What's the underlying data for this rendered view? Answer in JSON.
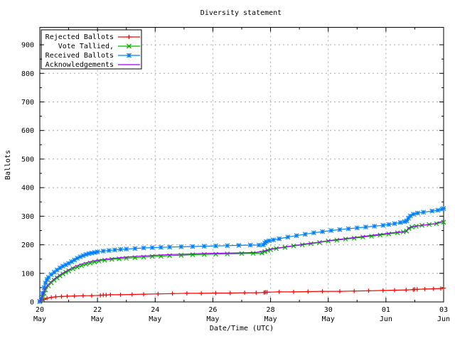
{
  "colors": {
    "background": "#ffffff",
    "border": "#000000",
    "grid": "#a8a8a8",
    "red": "#ff0000",
    "green": "#00b000",
    "blue": "#0080ff",
    "purple": "#a000f0"
  },
  "chart_data": {
    "type": "line",
    "title": "Diversity statement",
    "xlabel": "Date/Time (UTC)",
    "ylabel": "Ballots",
    "grid": true,
    "legend_position": "top-left",
    "x_axis": {
      "unit": "days from first tick (May 20)",
      "range_days": [
        0,
        14
      ],
      "tick_days": [
        0,
        2,
        4,
        6,
        8,
        10,
        12,
        14
      ],
      "tick_labels": [
        [
          "20",
          "May"
        ],
        [
          "22",
          "May"
        ],
        [
          "24",
          "May"
        ],
        [
          "26",
          "May"
        ],
        [
          "28",
          "May"
        ],
        [
          "30",
          "May"
        ],
        [
          "01",
          "Jun"
        ],
        [
          "03",
          "Jun"
        ]
      ],
      "minor_tick_days": [
        1,
        3,
        5,
        7,
        9,
        11,
        13
      ]
    },
    "y_axis": {
      "range": [
        0,
        961
      ],
      "ticks": [
        0,
        100,
        200,
        300,
        400,
        500,
        600,
        700,
        800,
        900
      ],
      "minor_step": 50
    },
    "series": [
      {
        "name": "Rejected Ballots",
        "color": "#ff0000",
        "marker": "plus",
        "points": [
          [
            0,
            1
          ],
          [
            0.08,
            5
          ],
          [
            0.15,
            9
          ],
          [
            0.25,
            13
          ],
          [
            0.4,
            16
          ],
          [
            0.55,
            18
          ],
          [
            0.75,
            19
          ],
          [
            0.95,
            20
          ],
          [
            1.2,
            21
          ],
          [
            1.5,
            22
          ],
          [
            1.8,
            22
          ],
          [
            2.1,
            23
          ],
          [
            2.2,
            24
          ],
          [
            2.3,
            24
          ],
          [
            2.45,
            25
          ],
          [
            2.8,
            25
          ],
          [
            3.2,
            26
          ],
          [
            3.6,
            27
          ],
          [
            4.1,
            28
          ],
          [
            4.6,
            29
          ],
          [
            5.1,
            30
          ],
          [
            5.6,
            30
          ],
          [
            6.1,
            31
          ],
          [
            6.6,
            31
          ],
          [
            7.1,
            32
          ],
          [
            7.5,
            32
          ],
          [
            7.78,
            33
          ],
          [
            7.82,
            34
          ],
          [
            7.88,
            34
          ],
          [
            8.3,
            35
          ],
          [
            8.8,
            35
          ],
          [
            9.3,
            36
          ],
          [
            9.8,
            37
          ],
          [
            10.4,
            37
          ],
          [
            10.9,
            38
          ],
          [
            11.4,
            39
          ],
          [
            11.9,
            40
          ],
          [
            12.3,
            41
          ],
          [
            12.7,
            42
          ],
          [
            12.95,
            43
          ],
          [
            13.0,
            44
          ],
          [
            13.08,
            44
          ],
          [
            13.35,
            45
          ],
          [
            13.65,
            46
          ],
          [
            13.9,
            47
          ],
          [
            14.0,
            48
          ]
        ]
      },
      {
        "name": "Vote Tallied,",
        "color": "#00b000",
        "marker": "cross",
        "points": [
          [
            0,
            1
          ],
          [
            0.05,
            6
          ],
          [
            0.1,
            16
          ],
          [
            0.15,
            30
          ],
          [
            0.2,
            42
          ],
          [
            0.3,
            56
          ],
          [
            0.4,
            67
          ],
          [
            0.5,
            76
          ],
          [
            0.6,
            84
          ],
          [
            0.7,
            91
          ],
          [
            0.8,
            98
          ],
          [
            0.9,
            104
          ],
          [
            1.0,
            109
          ],
          [
            1.15,
            116
          ],
          [
            1.3,
            122
          ],
          [
            1.45,
            127
          ],
          [
            1.6,
            132
          ],
          [
            1.75,
            136
          ],
          [
            1.9,
            140
          ],
          [
            2.05,
            143
          ],
          [
            2.25,
            146
          ],
          [
            2.5,
            149
          ],
          [
            2.75,
            151
          ],
          [
            3.0,
            153
          ],
          [
            3.3,
            155
          ],
          [
            3.6,
            157
          ],
          [
            3.9,
            159
          ],
          [
            4.2,
            160
          ],
          [
            4.5,
            162
          ],
          [
            4.9,
            163
          ],
          [
            5.3,
            165
          ],
          [
            5.7,
            166
          ],
          [
            6.1,
            167
          ],
          [
            6.5,
            168
          ],
          [
            7.0,
            169
          ],
          [
            7.4,
            170
          ],
          [
            7.7,
            171
          ],
          [
            7.8,
            176
          ],
          [
            7.9,
            180
          ],
          [
            8.0,
            183
          ],
          [
            8.2,
            187
          ],
          [
            8.5,
            191
          ],
          [
            8.8,
            196
          ],
          [
            9.1,
            200
          ],
          [
            9.4,
            204
          ],
          [
            9.7,
            208
          ],
          [
            10.0,
            213
          ],
          [
            10.3,
            216
          ],
          [
            10.6,
            220
          ],
          [
            10.9,
            223
          ],
          [
            11.2,
            227
          ],
          [
            11.5,
            230
          ],
          [
            11.8,
            234
          ],
          [
            12.1,
            238
          ],
          [
            12.4,
            242
          ],
          [
            12.6,
            245
          ],
          [
            12.72,
            248
          ],
          [
            12.8,
            257
          ],
          [
            12.9,
            262
          ],
          [
            13.05,
            265
          ],
          [
            13.25,
            268
          ],
          [
            13.5,
            271
          ],
          [
            13.75,
            274
          ],
          [
            14.0,
            279
          ]
        ]
      },
      {
        "name": "Received Ballots",
        "color": "#0080ff",
        "marker": "star",
        "points": [
          [
            0,
            2
          ],
          [
            0.05,
            12
          ],
          [
            0.1,
            30
          ],
          [
            0.15,
            50
          ],
          [
            0.2,
            66
          ],
          [
            0.25,
            78
          ],
          [
            0.3,
            86
          ],
          [
            0.4,
            96
          ],
          [
            0.5,
            104
          ],
          [
            0.6,
            112
          ],
          [
            0.7,
            119
          ],
          [
            0.8,
            125
          ],
          [
            0.9,
            130
          ],
          [
            1.0,
            135
          ],
          [
            1.1,
            141
          ],
          [
            1.2,
            147
          ],
          [
            1.3,
            153
          ],
          [
            1.4,
            158
          ],
          [
            1.5,
            162
          ],
          [
            1.6,
            166
          ],
          [
            1.7,
            169
          ],
          [
            1.8,
            171
          ],
          [
            1.9,
            173
          ],
          [
            2.0,
            175
          ],
          [
            2.2,
            178
          ],
          [
            2.4,
            180
          ],
          [
            2.6,
            182
          ],
          [
            2.8,
            184
          ],
          [
            3.0,
            185
          ],
          [
            3.3,
            187
          ],
          [
            3.6,
            189
          ],
          [
            3.9,
            190
          ],
          [
            4.2,
            191
          ],
          [
            4.5,
            192
          ],
          [
            4.9,
            193
          ],
          [
            5.3,
            194
          ],
          [
            5.7,
            195
          ],
          [
            6.1,
            196
          ],
          [
            6.5,
            197
          ],
          [
            6.9,
            198
          ],
          [
            7.3,
            199
          ],
          [
            7.6,
            199
          ],
          [
            7.75,
            200
          ],
          [
            7.8,
            206
          ],
          [
            7.85,
            211
          ],
          [
            7.95,
            214
          ],
          [
            8.1,
            217
          ],
          [
            8.3,
            221
          ],
          [
            8.6,
            227
          ],
          [
            8.9,
            232
          ],
          [
            9.2,
            237
          ],
          [
            9.5,
            242
          ],
          [
            9.8,
            246
          ],
          [
            10.1,
            250
          ],
          [
            10.4,
            253
          ],
          [
            10.7,
            256
          ],
          [
            11.0,
            259
          ],
          [
            11.3,
            262
          ],
          [
            11.6,
            265
          ],
          [
            11.9,
            268
          ],
          [
            12.1,
            271
          ],
          [
            12.3,
            274
          ],
          [
            12.5,
            278
          ],
          [
            12.65,
            281
          ],
          [
            12.72,
            284
          ],
          [
            12.78,
            293
          ],
          [
            12.85,
            301
          ],
          [
            12.95,
            307
          ],
          [
            13.1,
            311
          ],
          [
            13.3,
            314
          ],
          [
            13.6,
            318
          ],
          [
            13.8,
            321
          ],
          [
            13.95,
            325
          ],
          [
            14.0,
            327
          ]
        ]
      },
      {
        "name": "Acknowledgements",
        "color": "#a000f0",
        "marker": "none",
        "points": [
          [
            0,
            0
          ],
          [
            0.1,
            24
          ],
          [
            0.2,
            48
          ],
          [
            0.3,
            62
          ],
          [
            0.45,
            76
          ],
          [
            0.6,
            88
          ],
          [
            0.75,
            98
          ],
          [
            0.9,
            107
          ],
          [
            1.0,
            113
          ],
          [
            1.2,
            123
          ],
          [
            1.4,
            131
          ],
          [
            1.6,
            137
          ],
          [
            1.8,
            142
          ],
          [
            2.0,
            146
          ],
          [
            2.3,
            150
          ],
          [
            2.6,
            153
          ],
          [
            3.0,
            157
          ],
          [
            3.4,
            160
          ],
          [
            3.8,
            162
          ],
          [
            4.2,
            164
          ],
          [
            4.6,
            166
          ],
          [
            5.0,
            167
          ],
          [
            5.5,
            169
          ],
          [
            6.0,
            170
          ],
          [
            6.5,
            171
          ],
          [
            7.0,
            172
          ],
          [
            7.5,
            173
          ],
          [
            7.8,
            179
          ],
          [
            8.0,
            185
          ],
          [
            8.4,
            191
          ],
          [
            8.8,
            197
          ],
          [
            9.2,
            203
          ],
          [
            9.6,
            208
          ],
          [
            10.0,
            214
          ],
          [
            10.4,
            219
          ],
          [
            10.8,
            224
          ],
          [
            11.2,
            229
          ],
          [
            11.6,
            234
          ],
          [
            12.0,
            239
          ],
          [
            12.4,
            244
          ],
          [
            12.7,
            247
          ],
          [
            12.78,
            259
          ],
          [
            12.9,
            263
          ],
          [
            13.1,
            266
          ],
          [
            13.4,
            270
          ],
          [
            13.7,
            274
          ],
          [
            14.0,
            284
          ]
        ]
      }
    ]
  }
}
